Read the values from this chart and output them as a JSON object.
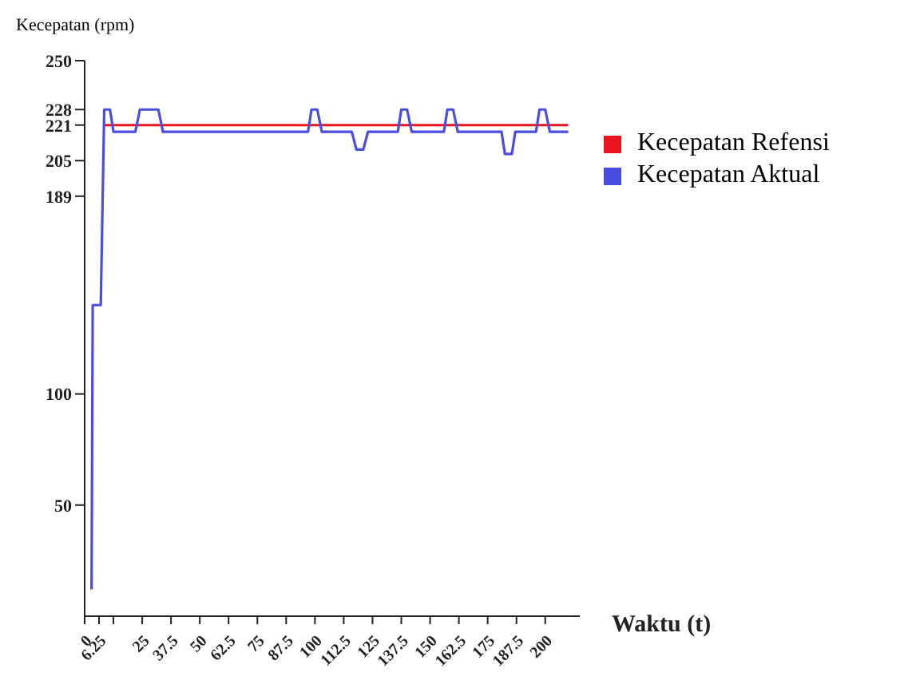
{
  "chart_data": {
    "type": "line",
    "xlabel": "Waktu (t)",
    "ylabel": "Kecepatan (rpm)",
    "xlim": [
      0,
      215
    ],
    "ylim": [
      0,
      250
    ],
    "xticks": [
      0,
      6.25,
      {
        "value": 12.5,
        "label": null
      },
      25,
      37.5,
      50,
      62.5,
      75,
      87.5,
      100,
      112.5,
      125,
      137.5,
      150,
      162.5,
      175,
      187.5,
      200
    ],
    "yticks": [
      50,
      100,
      189,
      205,
      221,
      228,
      250
    ],
    "grid": false,
    "legend": "right",
    "marker": "none",
    "line_style": "solid",
    "series": [
      {
        "name": "Kecepatan Refensi",
        "color": "#e8141e",
        "x": [
          8.5,
          210
        ],
        "values": [
          221,
          221
        ]
      },
      {
        "name": "Kecepatan Aktual",
        "color": "#4a4ee0",
        "x": [
          3,
          3.5,
          7,
          8.5,
          11,
          12.5,
          22,
          24,
          32,
          34,
          97,
          98.5,
          101,
          103,
          116,
          118,
          121,
          123,
          136,
          137.5,
          140,
          142,
          156,
          157.5,
          160,
          162,
          181,
          182.5,
          185.5,
          187,
          196,
          197.5,
          200,
          202,
          210
        ],
        "values": [
          12,
          140,
          140,
          228,
          228,
          218,
          218,
          228,
          228,
          218,
          218,
          228,
          228,
          218,
          218,
          210,
          210,
          218,
          218,
          228,
          228,
          218,
          218,
          228,
          228,
          218,
          218,
          208,
          208,
          218,
          218,
          228,
          228,
          218,
          218
        ]
      }
    ]
  }
}
